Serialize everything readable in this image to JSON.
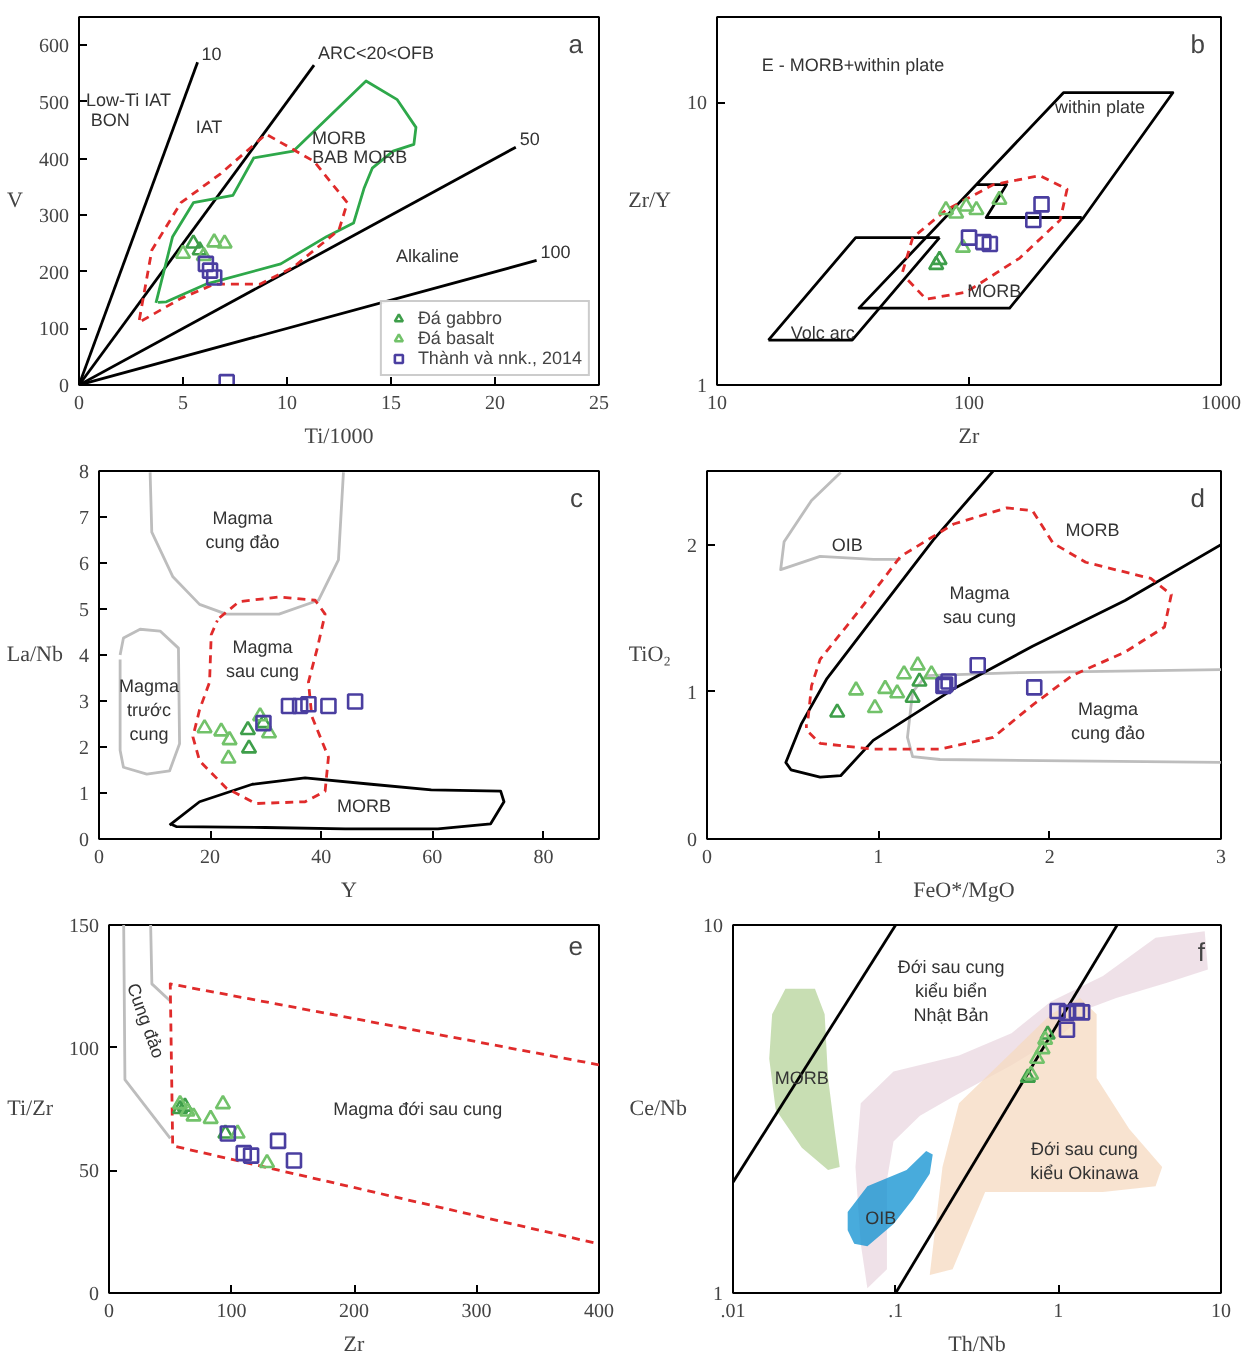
{
  "chart_data": [
    {
      "type": "scatter",
      "title": "a",
      "xlabel": "Ti/1000",
      "ylabel": "V",
      "xlim": [
        0,
        25
      ],
      "ylim": [
        0,
        650
      ],
      "xticks": [
        0,
        5,
        10,
        15,
        20,
        25
      ],
      "yticks": [
        0,
        100,
        200,
        300,
        400,
        500,
        600
      ],
      "legend": "bottom right",
      "series": [
        {
          "name": "10",
          "type": "line",
          "color": "#000000",
          "x": [
            0,
            5.7
          ],
          "values": [
            0,
            570
          ]
        },
        {
          "name": "ARC<20<OFB",
          "type": "line",
          "color": "#000000",
          "x": [
            0,
            11.3
          ],
          "values": [
            0,
            565
          ]
        },
        {
          "name": "50",
          "type": "line",
          "color": "#000000",
          "x": [
            0,
            21
          ],
          "values": [
            0,
            420
          ]
        },
        {
          "name": "100",
          "type": "line",
          "color": "#000000",
          "x": [
            0,
            22
          ],
          "values": [
            0,
            220
          ]
        },
        {
          "type": "line",
          "color": "#2ea84a",
          "x": [
            3.7,
            4.5,
            5.5,
            7.4,
            8.4,
            10.3,
            13.8,
            15.3,
            16.2,
            16.1,
            15.1,
            14.1,
            13.7,
            13.2,
            11.9,
            9.7,
            6.1,
            4.2,
            3.8
          ],
          "values": [
            145,
            262,
            322,
            335,
            401,
            413,
            537,
            504,
            455,
            425,
            413,
            383,
            347,
            286,
            262,
            214,
            178,
            147,
            146
          ]
        },
        {
          "type": "line",
          "color": "#e02b2b",
          "line_style": "dashed",
          "x": [
            2.9,
            3.5,
            4.9,
            6.8,
            9.0,
            11.3,
            12.9,
            12.5,
            10.3,
            8.7,
            6.5,
            4.9,
            3.0
          ],
          "values": [
            115,
            238,
            322,
            373,
            443,
            395,
            322,
            274,
            208,
            178,
            178,
            153,
            113
          ]
        },
        {
          "name": "Đá gabbro",
          "marker": "triangle",
          "color": "#3e9e4a",
          "x": [
            5.5,
            5.8
          ],
          "values": [
            250,
            238
          ]
        },
        {
          "name": "Đá basalt",
          "marker": "triangle",
          "color": "#72c26a",
          "x": [
            5.0,
            6.5,
            7.0,
            6.0
          ],
          "values": [
            232,
            252,
            250,
            228
          ]
        },
        {
          "name": "Thành và nnk., 2014",
          "marker": "square",
          "color": "#4a3ea0",
          "x": [
            6.1,
            6.3,
            6.5,
            7.1
          ],
          "values": [
            214,
            202,
            190,
            5
          ]
        }
      ],
      "annotations": [
        "Low-Ti IAT",
        "BON",
        "IAT",
        "MORB",
        "BAB MORB",
        "Alkaline"
      ]
    },
    {
      "type": "scatter",
      "title": "b",
      "xlabel": "Zr",
      "ylabel": "Zr/Y",
      "log": "xy",
      "xlim": [
        10,
        1000
      ],
      "ylim": [
        1,
        20
      ],
      "xticks": [
        10,
        100,
        1000
      ],
      "yticks": [
        1,
        10
      ],
      "series": [
        {
          "type": "line",
          "color": "#000000",
          "x": [
            16.0,
            35.5,
            76.4
          ],
          "values": [
            1.44,
            3.32,
            3.32
          ]
        },
        {
          "type": "line",
          "color": "#000000",
          "x": [
            16.0,
            34.4,
            76.4
          ],
          "values": [
            1.44,
            1.44,
            3.32
          ]
        },
        {
          "type": "line",
          "color": "#000000",
          "x": [
            67.6,
            237,
            644,
            285,
            145,
            36.6,
            107,
            141,
            117,
            280
          ],
          "values": [
            3.32,
            10.8,
            10.8,
            3.91,
            1.87,
            1.87,
            5.11,
            5.11,
            3.91,
            3.91
          ]
        },
        {
          "type": "line",
          "color": "#e02b2b",
          "line_style": "dashed",
          "x": [
            54.5,
            59.8,
            81.2,
            125,
            191,
            245,
            230,
            159,
            97.5,
            67.6,
            56
          ],
          "values": [
            2.51,
            3.32,
            4.16,
            5.11,
            5.5,
            4.92,
            3.83,
            2.81,
            2.13,
            2.01,
            2.4
          ]
        },
        {
          "marker": "triangle",
          "color": "#3e9e4a",
          "x": [
            74.1,
            76.4
          ],
          "values": [
            2.66,
            2.77
          ]
        },
        {
          "marker": "triangle",
          "color": "#72c26a",
          "x": [
            81,
            88.9,
            97.5,
            107,
            132,
            94.6
          ],
          "values": [
            4.16,
            4.04,
            4.28,
            4.16,
            4.52,
            3.06
          ]
        },
        {
          "marker": "square",
          "color": "#4a3ea0",
          "x": [
            100,
            114,
            121,
            180,
            194
          ],
          "values": [
            3.32,
            3.2,
            3.15,
            3.83,
            4.35
          ]
        }
      ],
      "annotations": [
        "E - MORB+within plate",
        "within plate",
        "MORB",
        "Volc arc"
      ]
    },
    {
      "type": "scatter",
      "title": "c",
      "xlabel": "Y",
      "ylabel": "La/Nb",
      "xlim": [
        0,
        90
      ],
      "ylim": [
        0,
        8
      ],
      "xticks": [
        0,
        20,
        40,
        60,
        80
      ],
      "yticks": [
        0,
        1,
        2,
        3,
        4,
        5,
        6,
        7,
        8
      ],
      "series": [
        {
          "type": "line",
          "color": "#bdbdbd",
          "x": [
            9.2,
            9.5,
            13.3,
            18.1,
            22.9,
            32.4,
            39.5,
            43.1,
            44.0
          ],
          "values": [
            7.97,
            6.67,
            5.7,
            5.1,
            4.89,
            4.89,
            5.19,
            6.07,
            7.97
          ]
        },
        {
          "type": "line",
          "color": "#bdbdbd",
          "x": [
            3.8,
            4.4,
            7.4,
            11.0,
            14.3,
            14.5,
            12.7,
            8.6,
            4.4,
            3.8,
            3.8
          ],
          "values": [
            4.0,
            4.37,
            4.56,
            4.52,
            4.15,
            2.07,
            1.48,
            1.41,
            1.56,
            1.93,
            3.9
          ]
        },
        {
          "type": "line",
          "color": "#000000",
          "x": [
            12.7,
            18.1,
            27.6,
            37.1,
            49.0,
            59.8,
            72.3,
            72.9,
            70.5,
            61,
            44.3,
            30,
            13.9,
            13.0
          ],
          "values": [
            0.3,
            0.81,
            1.19,
            1.33,
            1.19,
            1.07,
            1.04,
            0.81,
            0.33,
            0.22,
            0.22,
            0.25,
            0.27,
            0.32
          ]
        },
        {
          "type": "line",
          "color": "#e02b2b",
          "line_style": "dashed",
          "x": [
            21.7,
            25.2,
            32.4,
            38.9,
            40.7,
            39.3,
            37.7,
            38.3,
            41.3,
            40.7,
            37.1,
            28.2,
            22.9,
            18.1,
            16.9,
            18.1,
            19.9,
            20.2,
            21.3
          ],
          "values": [
            4.81,
            5.16,
            5.26,
            5.19,
            4.89,
            4.15,
            3.41,
            2.67,
            1.78,
            1.04,
            0.81,
            0.77,
            1.11,
            1.7,
            2.22,
            2.81,
            3.41,
            4.44,
            4.75
          ]
        },
        {
          "marker": "triangle",
          "color": "#3e9e4a",
          "x": [
            26.8,
            27.0,
            29.6
          ],
          "values": [
            2.37,
            1.97,
            2.52
          ]
        },
        {
          "marker": "triangle",
          "color": "#72c26a",
          "x": [
            19.0,
            22.0,
            23.5,
            23.3,
            30.6,
            29.0
          ],
          "values": [
            2.41,
            2.34,
            2.15,
            1.75,
            2.3,
            2.67
          ]
        },
        {
          "marker": "square",
          "color": "#4a3ea0",
          "x": [
            29.6,
            34.2,
            36.2,
            37.7,
            41.3,
            46.1
          ],
          "values": [
            2.52,
            2.89,
            2.89,
            2.93,
            2.89,
            2.99
          ]
        }
      ],
      "annotations": [
        "Magma\ncung đảo",
        "Magma\ntrước\ncung",
        "Magma\nsau cung",
        "MORB"
      ]
    },
    {
      "type": "scatter",
      "title": "d",
      "xlabel": "FeO*/MgO",
      "ylabel": "TiO₂",
      "xlim": [
        0,
        3
      ],
      "ylim": [
        0,
        2.5
      ],
      "xticks": [
        0,
        1,
        2,
        3
      ],
      "yticks": [
        0,
        1,
        2
      ],
      "series": [
        {
          "type": "line",
          "color": "#bdbdbd",
          "x": [
            0.78,
            0.61,
            0.45,
            0.43,
            0.66,
            0.97,
            1.13
          ],
          "values": [
            2.49,
            2.3,
            2.02,
            1.83,
            1.92,
            1.9,
            1.9
          ]
        },
        {
          "type": "line",
          "color": "#bdbdbd",
          "x": [
            3,
            1.82,
            1.28,
            1.2,
            1.17,
            1.2,
            1.36,
            3
          ],
          "values": [
            1.15,
            1.13,
            1.11,
            1.0,
            0.69,
            0.56,
            0.54,
            0.52
          ]
        },
        {
          "type": "line",
          "color": "#000000",
          "x": [
            1.67,
            1.32,
            0.97,
            0.7,
            0.55,
            0.46,
            0.49,
            0.66,
            0.78,
            0.97,
            1.44,
            1.9,
            2.44,
            3.0
          ],
          "values": [
            2.5,
            2.03,
            1.5,
            1.09,
            0.78,
            0.52,
            0.47,
            0.42,
            0.43,
            0.67,
            1.02,
            1.31,
            1.62,
            2.0
          ]
        },
        {
          "type": "line",
          "color": "#e02b2b",
          "line_style": "dashed",
          "x": [
            0.59,
            0.61,
            0.66,
            0.9,
            1.13,
            1.44,
            1.75,
            1.9,
            2.02,
            2.21,
            2.59,
            2.71,
            2.67,
            2.44,
            2.13,
            1.9,
            1.67,
            1.36,
            0.97,
            0.66,
            0.58,
            0.58
          ],
          "values": [
            0.82,
            1.04,
            1.22,
            1.57,
            1.92,
            2.14,
            2.25,
            2.23,
            2.01,
            1.88,
            1.77,
            1.66,
            1.44,
            1.27,
            1.11,
            0.91,
            0.69,
            0.61,
            0.61,
            0.65,
            0.74,
            0.78
          ]
        },
        {
          "marker": "triangle",
          "color": "#3e9e4a",
          "x": [
            0.76,
            1.2,
            1.24
          ],
          "values": [
            0.86,
            0.96,
            1.07
          ]
        },
        {
          "marker": "triangle",
          "color": "#72c26a",
          "x": [
            0.87,
            0.98,
            1.04,
            1.11,
            1.15,
            1.23,
            1.31
          ],
          "values": [
            1.01,
            0.89,
            1.02,
            0.99,
            1.12,
            1.18,
            1.12
          ]
        },
        {
          "marker": "square",
          "color": "#4a3ea0",
          "x": [
            1.38,
            1.39,
            1.41,
            1.58,
            1.91
          ],
          "values": [
            1.04,
            1.05,
            1.07,
            1.18,
            1.03
          ]
        }
      ],
      "annotations": [
        "OIB",
        "MORB",
        "Magma\nsau cung",
        "Magma\ncung đảo"
      ]
    },
    {
      "type": "scatter",
      "title": "e",
      "xlabel": "Zr",
      "ylabel": "Ti/Zr",
      "xlim": [
        0,
        400
      ],
      "ylim": [
        0,
        150
      ],
      "xticks": [
        0,
        100,
        200,
        300,
        400
      ],
      "yticks": [
        0,
        50,
        100,
        150
      ],
      "series": [
        {
          "type": "line",
          "color": "#bdbdbd",
          "x": [
            12,
            13,
            50
          ],
          "values": [
            150,
            87,
            63
          ]
        },
        {
          "type": "line",
          "color": "#bdbdbd",
          "x": [
            34,
            35,
            50
          ],
          "values": [
            150,
            126,
            119
          ]
        },
        {
          "type": "line",
          "color": "#e02b2b",
          "line_style": "dashed",
          "x": [
            400,
            50,
            52,
            400
          ],
          "values": [
            93,
            126,
            60,
            20
          ]
        },
        {
          "marker": "triangle",
          "color": "#3e9e4a",
          "x": [
            58,
            62,
            95
          ],
          "values": [
            75,
            76,
            65
          ]
        },
        {
          "marker": "triangle",
          "color": "#72c26a",
          "x": [
            58,
            69,
            83,
            93,
            105,
            129,
            64
          ],
          "values": [
            77,
            72,
            71,
            77,
            65,
            53,
            74
          ]
        },
        {
          "marker": "square",
          "color": "#4a3ea0",
          "x": [
            97,
            110,
            116,
            138,
            151
          ],
          "values": [
            65,
            57,
            56,
            62,
            54
          ]
        }
      ],
      "annotations": [
        "Magma đới sau cung",
        "Cung đảo"
      ]
    },
    {
      "type": "scatter",
      "title": "f",
      "xlabel": "Th/Nb",
      "ylabel": "Ce/Nb",
      "log": "xy",
      "xlim": [
        0.01,
        10
      ],
      "ylim": [
        1,
        10
      ],
      "xticks": [
        {
          "value": 0.01,
          "label": ".01"
        },
        {
          "value": 0.1,
          "label": ".1"
        },
        1,
        10
      ],
      "yticks": [
        1,
        10
      ],
      "series": [
        {
          "type": "area",
          "color": "#e9d7e0",
          "x": [
            0.067,
            0.061,
            0.0566,
            0.061,
            0.097,
            0.245,
            0.515,
            0.9,
            1.88,
            3.96,
            7.94,
            8.31,
            4.77,
            2.27,
            1.57,
            1.08,
            0.515,
            0.224,
            0.141,
            0.097,
            0.0884,
            0.0884
          ],
          "values": [
            1.03,
            1.36,
            2.2,
            3.28,
            4.0,
            4.42,
            5.08,
            6.2,
            7.27,
            9.23,
            9.61,
            7.57,
            6.99,
            6.33,
            5.96,
            5.08,
            4.16,
            3.41,
            3.03,
            2.58,
            2.03,
            1.16
          ]
        },
        {
          "type": "area",
          "color": "#f6d9c0",
          "x": [
            0.162,
            0.194,
            0.245,
            0.428,
            0.9,
            1.36,
            1.72,
            1.72,
            2.73,
            4.35,
            3.96,
            1.88,
            0.355,
            0.224
          ],
          "values": [
            1.12,
            2.2,
            3.28,
            4.16,
            5.72,
            6.33,
            5.72,
            3.84,
            2.79,
            2.2,
            1.95,
            1.88,
            1.88,
            1.16
          ]
        },
        {
          "type": "area",
          "color": "#b5d39a",
          "x": [
            0.021,
            0.0319,
            0.0366,
            0.0384,
            0.0421,
            0.0453,
            0.0384,
            0.0265,
            0.0183,
            0.0167,
            0.0174
          ],
          "values": [
            6.71,
            6.71,
            5.72,
            3.84,
            2.79,
            2.2,
            2.16,
            2.48,
            3.15,
            4.33,
            5.72
          ]
        },
        {
          "type": "area",
          "color": "#0b8fd0",
          "x": [
            0.0507,
            0.067,
            0.1167,
            0.154,
            0.169,
            0.162,
            0.128,
            0.097,
            0.067,
            0.0556,
            0.0507
          ],
          "values": [
            1.66,
            1.95,
            2.16,
            2.43,
            2.38,
            2.11,
            1.8,
            1.54,
            1.34,
            1.36,
            1.48
          ]
        },
        {
          "type": "line",
          "color": "#000000",
          "x": [
            0.01,
            0.1
          ],
          "values": [
            2,
            10
          ]
        },
        {
          "type": "line",
          "color": "#000000",
          "x": [
            0.1,
            2.3
          ],
          "values": [
            1,
            10
          ]
        },
        {
          "marker": "triangle",
          "color": "#3e9e4a",
          "x": [
            0.86,
            0.65
          ],
          "values": [
            5.04,
            3.85
          ]
        },
        {
          "marker": "triangle",
          "color": "#72c26a",
          "x": [
            0.83,
            0.8,
            0.68,
            0.74
          ],
          "values": [
            4.88,
            4.6,
            3.92,
            4.33
          ]
        },
        {
          "marker": "square",
          "color": "#4a3ea0",
          "x": [
            0.99,
            1.13,
            1.3,
            1.4,
            1.13
          ],
          "values": [
            5.84,
            5.77,
            5.84,
            5.79,
            5.19
          ]
        }
      ],
      "annotations": [
        "Đới sau cung\nkiểu biển\nNhật Bản",
        "Đới sau cung\nkiểu Okinawa",
        "MORB",
        "OIB"
      ]
    }
  ]
}
